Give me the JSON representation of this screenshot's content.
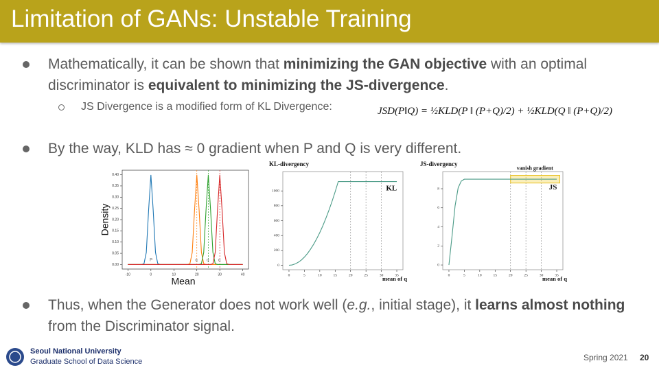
{
  "header": {
    "title": "Limitation of GANs: Unstable Training"
  },
  "bullets": [
    {
      "runs": [
        {
          "text": " Mathematically, it can be shown that ",
          "bold": false
        },
        {
          "text": "minimizing the GAN objective",
          "bold": true
        },
        {
          "text": " with an optimal discriminator is ",
          "bold": false
        },
        {
          "text": "equivalent to minimizing the JS-divergence",
          "bold": true
        },
        {
          "text": ".",
          "bold": false
        }
      ],
      "sub": {
        "text": "JS Divergence is a modified form of KL Divergence:",
        "formula": "JSD(P‖Q) = ½KLD(P ‖ (P+Q)/2) + ½KLD(Q ‖ (P+Q)/2)"
      }
    },
    {
      "runs": [
        {
          "text": "By the way, KLD has ≈ 0 gradient when P and Q is very different.",
          "bold": false
        }
      ]
    },
    {
      "runs": [
        {
          "text": "Thus, when the Generator does not work well (",
          "bold": false
        },
        {
          "text": "e.g.",
          "bold": false,
          "italic": true
        },
        {
          "text": ", initial stage), it ",
          "bold": false
        },
        {
          "text": "learns almost nothing",
          "bold": true
        },
        {
          "text": " from the Discriminator signal.",
          "bold": false
        }
      ]
    }
  ],
  "chart_data": [
    {
      "type": "line",
      "xlabel": "Mean",
      "ylabel": "Density",
      "x": [
        -10,
        -9,
        -8,
        -7,
        -6,
        -5,
        -4,
        -3,
        -2,
        -1,
        0,
        1,
        2,
        3,
        4,
        5,
        6,
        7,
        8,
        9,
        10,
        11,
        12,
        13,
        14,
        15,
        16,
        17,
        18,
        19,
        20,
        21,
        22,
        23,
        24,
        25,
        26,
        27,
        28,
        29,
        30,
        31,
        32,
        33,
        34,
        35,
        36,
        37,
        38,
        39,
        40
      ],
      "xlim": [
        -12.5,
        42.5
      ],
      "xticks": [
        -10,
        0,
        10,
        20,
        30,
        40
      ],
      "ylim": [
        -0.02,
        0.42
      ],
      "yticks": [
        {
          "value": 0,
          "label": "0.00"
        },
        {
          "value": 0.05,
          "label": "0.05"
        },
        {
          "value": 0.1,
          "label": "0.10"
        },
        {
          "value": 0.15,
          "label": "0.15"
        },
        {
          "value": 0.2,
          "label": "0.20"
        },
        {
          "value": 0.25,
          "label": "0.25"
        },
        {
          "value": 0.3,
          "label": "0.30"
        },
        {
          "value": 0.35,
          "label": "0.35"
        },
        {
          "value": 0.4,
          "label": "0.40"
        }
      ],
      "series": [
        {
          "color": "#1f77b4",
          "values": [
            0,
            0,
            0,
            0,
            0,
            0,
            0,
            0.004,
            0.054,
            0.242,
            0.399,
            0.242,
            0.054,
            0.004,
            0,
            0,
            0,
            0,
            0,
            0,
            0,
            0,
            0,
            0,
            0,
            0,
            0,
            0,
            0,
            0,
            0,
            0,
            0,
            0,
            0,
            0,
            0,
            0,
            0,
            0,
            0,
            0,
            0,
            0,
            0,
            0,
            0,
            0,
            0,
            0,
            0
          ]
        },
        {
          "color": "#ff7f0e",
          "values": [
            0,
            0,
            0,
            0,
            0,
            0,
            0,
            0,
            0,
            0,
            0,
            0,
            0,
            0,
            0,
            0,
            0,
            0,
            0,
            0,
            0,
            0,
            0,
            0,
            0,
            0,
            0,
            0.004,
            0.054,
            0.242,
            0.399,
            0.242,
            0.054,
            0.004,
            0,
            0,
            0,
            0,
            0,
            0,
            0,
            0,
            0,
            0,
            0,
            0,
            0,
            0,
            0,
            0,
            0
          ]
        },
        {
          "color": "#2ca02c",
          "values": [
            0,
            0,
            0,
            0,
            0,
            0,
            0,
            0,
            0,
            0,
            0,
            0,
            0,
            0,
            0,
            0,
            0,
            0,
            0,
            0,
            0,
            0,
            0,
            0,
            0,
            0,
            0,
            0,
            0,
            0,
            0,
            0,
            0.004,
            0.054,
            0.242,
            0.399,
            0.242,
            0.054,
            0.004,
            0,
            0,
            0,
            0,
            0,
            0,
            0,
            0,
            0,
            0,
            0,
            0
          ]
        },
        {
          "color": "#d62728",
          "values": [
            0,
            0,
            0,
            0,
            0,
            0,
            0,
            0,
            0,
            0,
            0,
            0,
            0,
            0,
            0,
            0,
            0,
            0,
            0,
            0,
            0,
            0,
            0,
            0,
            0,
            0,
            0,
            0,
            0,
            0,
            0,
            0,
            0,
            0,
            0,
            0,
            0,
            0.004,
            0.054,
            0.242,
            0.399,
            0.242,
            0.054,
            0.004,
            0,
            0,
            0,
            0,
            0,
            0,
            0
          ]
        }
      ],
      "vlines": [
        {
          "x": 20,
          "color": "#ff7f0e"
        },
        {
          "x": 25,
          "color": "#2ca02c"
        },
        {
          "x": 30,
          "color": "#d62728"
        }
      ],
      "annotations": [
        {
          "text": "P",
          "x": -0.5,
          "y": 0.02
        },
        {
          "text": "q",
          "x": 19.3,
          "y": 0.02
        },
        {
          "text": "q",
          "x": 24.3,
          "y": 0.02
        },
        {
          "text": "q",
          "x": 29.3,
          "y": 0.02
        }
      ]
    },
    {
      "type": "line",
      "title": "KL-divergency",
      "xlabel": "mean of q",
      "x": [
        0,
        1,
        2,
        3,
        4,
        5,
        6,
        7,
        8,
        9,
        10,
        11,
        12,
        13,
        14,
        15,
        16,
        17,
        18,
        19,
        20,
        21,
        22,
        23,
        24,
        25,
        26,
        27,
        28,
        29,
        30,
        31,
        32,
        33,
        34,
        35
      ],
      "xlim": [
        -2,
        37
      ],
      "xticks": [
        0,
        5,
        10,
        15,
        20,
        25,
        30,
        35
      ],
      "ylim": [
        -60,
        1260
      ],
      "yticks": [
        0,
        200,
        400,
        600,
        800,
        1000
      ],
      "series": [
        {
          "color": "#4a9a86",
          "values": [
            0,
            4,
            18,
            40,
            70,
            110,
            158,
            216,
            282,
            356,
            440,
            532,
            634,
            744,
            862,
            990,
            1126,
            1126,
            1126,
            1126,
            1126,
            1126,
            1126,
            1126,
            1126,
            1126,
            1126,
            1126,
            1126,
            1126,
            1126,
            1126,
            1126,
            1126,
            1126,
            1126
          ]
        }
      ],
      "vlines": [
        {
          "x": 20,
          "color": "#999999"
        },
        {
          "x": 25,
          "color": "#999999"
        },
        {
          "x": 30,
          "color": "#999999"
        }
      ],
      "annotations": [
        {
          "text": "KL",
          "x": 31.5,
          "y": 1030
        }
      ]
    },
    {
      "type": "line",
      "title": "JS-divergency",
      "xlabel": "mean of q",
      "x": [
        0,
        1,
        2,
        3,
        4,
        5,
        6,
        7,
        8,
        9,
        10,
        11,
        12,
        13,
        14,
        15,
        16,
        17,
        18,
        19,
        20,
        21,
        22,
        23,
        24,
        25,
        26,
        27,
        28,
        29,
        30,
        31,
        32,
        33,
        34,
        35
      ],
      "xlim": [
        -2,
        37
      ],
      "xticks": [
        0,
        5,
        10,
        15,
        20,
        25,
        30,
        35
      ],
      "ylim": [
        -0.5,
        9.8
      ],
      "yticks": [
        0,
        2,
        4,
        6,
        8
      ],
      "series": [
        {
          "color": "#4a9a86",
          "values": [
            0,
            3,
            6.2,
            8.1,
            8.8,
            9,
            9,
            9,
            9,
            9,
            9,
            9,
            9,
            9,
            9,
            9,
            9,
            9,
            9,
            9,
            9,
            9,
            9,
            9,
            9,
            9,
            9,
            9,
            9,
            9,
            9,
            9,
            9,
            9,
            9,
            9
          ]
        }
      ],
      "vlines": [
        {
          "x": 20,
          "color": "#999999"
        },
        {
          "x": 25,
          "color": "#999999"
        },
        {
          "x": 30,
          "color": "#999999"
        }
      ],
      "highlight": {
        "x": [
          20,
          36
        ],
        "y": [
          8.6,
          9.4
        ],
        "color": "#e8c020"
      },
      "annotations": [
        {
          "text": "vanish gradient",
          "x": 22,
          "y": 10.1
        },
        {
          "text": "JS",
          "x": 32.5,
          "y": 8.1
        }
      ]
    }
  ],
  "footer": {
    "university": "Seoul National University",
    "school": "Graduate School of Data Science",
    "term": "Spring 2021",
    "page": "20"
  }
}
